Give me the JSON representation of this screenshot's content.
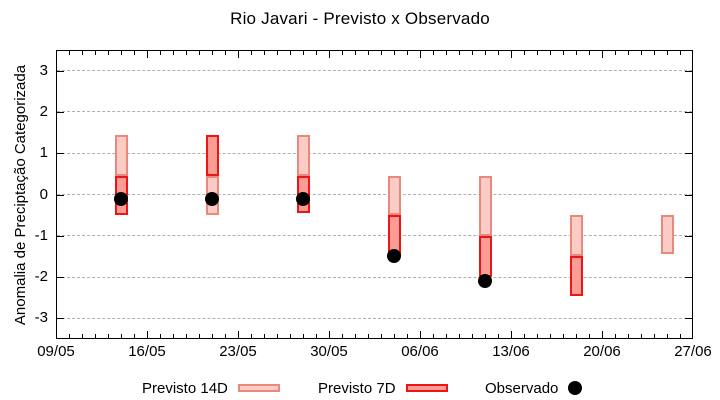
{
  "chart_data": {
    "type": "bar",
    "subtype": "range-candlesticks-with-points",
    "title": "Rio Javari - Previsto x Observado",
    "ylabel": "Anomalia de Preciptação Categorizada",
    "ylim": [
      -3.5,
      3.5
    ],
    "yticks": [
      3,
      2,
      1,
      0,
      -1,
      -2,
      -3
    ],
    "xticks": [
      "09/05",
      "16/05",
      "23/05",
      "30/05",
      "06/06",
      "13/06",
      "20/06",
      "27/06"
    ],
    "x_start": "09/05",
    "x_end": "27/06",
    "grid": "horizontal-dashed",
    "legend_position": "bottom",
    "groups": [
      {
        "date": "14/05",
        "previsto_14d": [
          0.45,
          1.45
        ],
        "previsto_7d": [
          -0.5,
          0.45
        ],
        "observado": -0.1
      },
      {
        "date": "21/05",
        "previsto_14d": [
          -0.5,
          0.45
        ],
        "previsto_7d": [
          0.45,
          1.45
        ],
        "observado": -0.1
      },
      {
        "date": "28/05",
        "previsto_14d": [
          0.45,
          1.45
        ],
        "previsto_7d": [
          -0.45,
          0.45
        ],
        "observado": -0.1
      },
      {
        "date": "04/06",
        "previsto_14d": [
          -0.5,
          0.45
        ],
        "previsto_7d": [
          -1.5,
          -0.5
        ],
        "observado": -1.5
      },
      {
        "date": "11/06",
        "previsto_14d": [
          -1.0,
          0.45
        ],
        "previsto_7d": [
          -2.0,
          -1.0
        ],
        "observado": -2.1
      },
      {
        "date": "18/06",
        "previsto_14d": [
          -1.5,
          -0.5
        ],
        "previsto_7d": [
          -2.45,
          -1.5
        ],
        "observado": null
      },
      {
        "date": "25/06",
        "previsto_14d": [
          -1.45,
          -0.5
        ],
        "previsto_7d": null,
        "observado": null
      }
    ],
    "legend": [
      {
        "label": "Previsto 14D",
        "marker": "box-pink"
      },
      {
        "label": "Previsto 7D",
        "marker": "box-red"
      },
      {
        "label": "Observado",
        "marker": "dot-black"
      }
    ],
    "colors": {
      "previsto_14d_fill": "#fbccc6",
      "previsto_14d_border": "#e8897c",
      "previsto_7d_fill": "#fb9d95",
      "previsto_7d_border": "#ed1515",
      "observado": "#000000",
      "grid": "#b0b0b0"
    }
  }
}
